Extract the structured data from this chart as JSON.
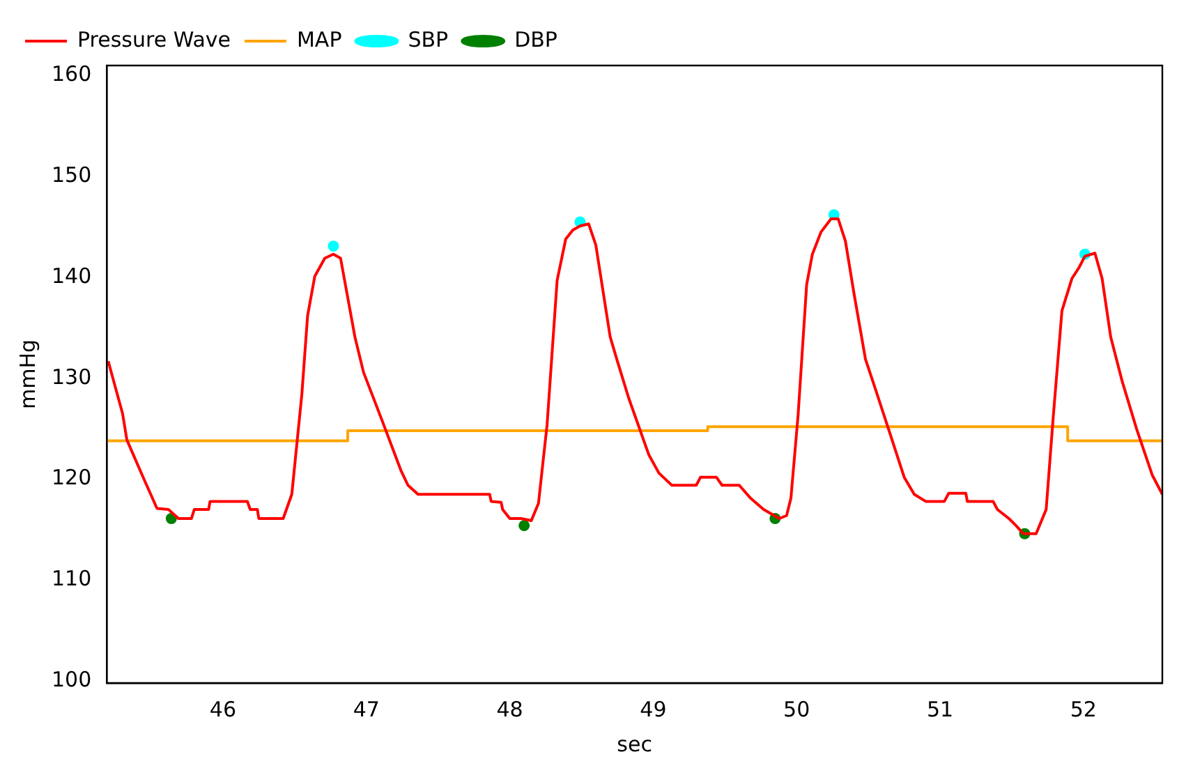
{
  "chart_data": {
    "type": "line",
    "xlabel": "sec",
    "ylabel": "mmHg",
    "xlim": [
      45.19,
      52.55
    ],
    "xticks": [
      46,
      47,
      48,
      49,
      50,
      51,
      52
    ],
    "ylim": [
      99.8,
      161
    ],
    "yticks": [
      100,
      110,
      120,
      130,
      140,
      150,
      160
    ],
    "grid": false,
    "legend": "top left",
    "marker": "none",
    "line_style": "solid",
    "series": [
      {
        "name": "Pressure Wave",
        "color": "#ff0000",
        "x": [
          45.2,
          45.3,
          45.33,
          45.44,
          45.54,
          45.62,
          45.69,
          45.78,
          45.8,
          45.9,
          45.91,
          46.17,
          46.19,
          46.24,
          46.25,
          46.42,
          46.48,
          46.55,
          46.59,
          46.64,
          46.71,
          46.77,
          46.82,
          46.92,
          46.98,
          47.11,
          47.24,
          47.29,
          47.36,
          47.55,
          47.86,
          47.87,
          47.94,
          47.95,
          48.0,
          48.08,
          48.15,
          48.2,
          48.26,
          48.33,
          48.39,
          48.44,
          48.49,
          48.55,
          48.6,
          48.7,
          48.75,
          48.83,
          48.97,
          49.04,
          49.13,
          49.3,
          49.33,
          49.44,
          49.48,
          49.6,
          49.68,
          49.77,
          49.88,
          49.93,
          49.96,
          50.01,
          50.07,
          50.11,
          50.17,
          50.24,
          50.29,
          50.34,
          50.4,
          50.48,
          50.55,
          50.64,
          50.75,
          50.82,
          50.9,
          51.03,
          51.06,
          51.18,
          51.19,
          51.37,
          51.4,
          51.48,
          51.53,
          51.58,
          51.67,
          51.74,
          51.79,
          51.85,
          51.92,
          51.97,
          52.01,
          52.08,
          52.13,
          52.19,
          52.27,
          52.37,
          52.48,
          52.55
        ],
        "values": [
          131.7,
          126.5,
          123.9,
          120.3,
          117.1,
          117.0,
          116.1,
          116.1,
          117.0,
          117.0,
          117.8,
          117.8,
          117.0,
          117.0,
          116.1,
          116.1,
          118.5,
          128.4,
          136.2,
          140.1,
          141.9,
          142.3,
          141.9,
          134.1,
          130.6,
          125.8,
          120.9,
          119.4,
          118.5,
          118.5,
          118.5,
          117.8,
          117.7,
          117.0,
          116.1,
          116.1,
          115.9,
          117.6,
          125.4,
          139.7,
          143.8,
          144.7,
          145.1,
          145.3,
          143.2,
          134.1,
          131.7,
          128.0,
          122.4,
          120.6,
          119.4,
          119.4,
          120.2,
          120.2,
          119.4,
          119.4,
          118.1,
          117.0,
          116.1,
          116.4,
          118.1,
          126.3,
          139.3,
          142.3,
          144.5,
          145.8,
          145.8,
          143.6,
          138.4,
          131.9,
          128.9,
          125.0,
          120.2,
          118.5,
          117.8,
          117.8,
          118.6,
          118.6,
          117.8,
          117.8,
          117.0,
          116.1,
          115.4,
          114.6,
          114.6,
          117.0,
          126.3,
          136.7,
          139.9,
          141.0,
          142.1,
          142.4,
          139.9,
          134.1,
          129.7,
          125.0,
          120.4,
          118.5
        ]
      },
      {
        "name": "MAP",
        "color": "#ffa500",
        "type": "step",
        "x": [
          45.19,
          46.87,
          49.38,
          51.89,
          52.55
        ],
        "values": [
          123.8,
          124.8,
          125.2,
          123.8,
          123.8
        ]
      },
      {
        "name": "SBP",
        "color": "#00ffff",
        "type": "scatter",
        "marker": "circle",
        "x": [
          46.77,
          48.49,
          50.26,
          52.01
        ],
        "values": [
          143.1,
          145.5,
          146.2,
          142.3
        ]
      },
      {
        "name": "DBP",
        "color": "#008000",
        "type": "scatter",
        "marker": "circle",
        "x": [
          45.64,
          48.1,
          49.85,
          51.59
        ],
        "values": [
          116.1,
          115.4,
          116.1,
          114.6
        ]
      }
    ]
  }
}
